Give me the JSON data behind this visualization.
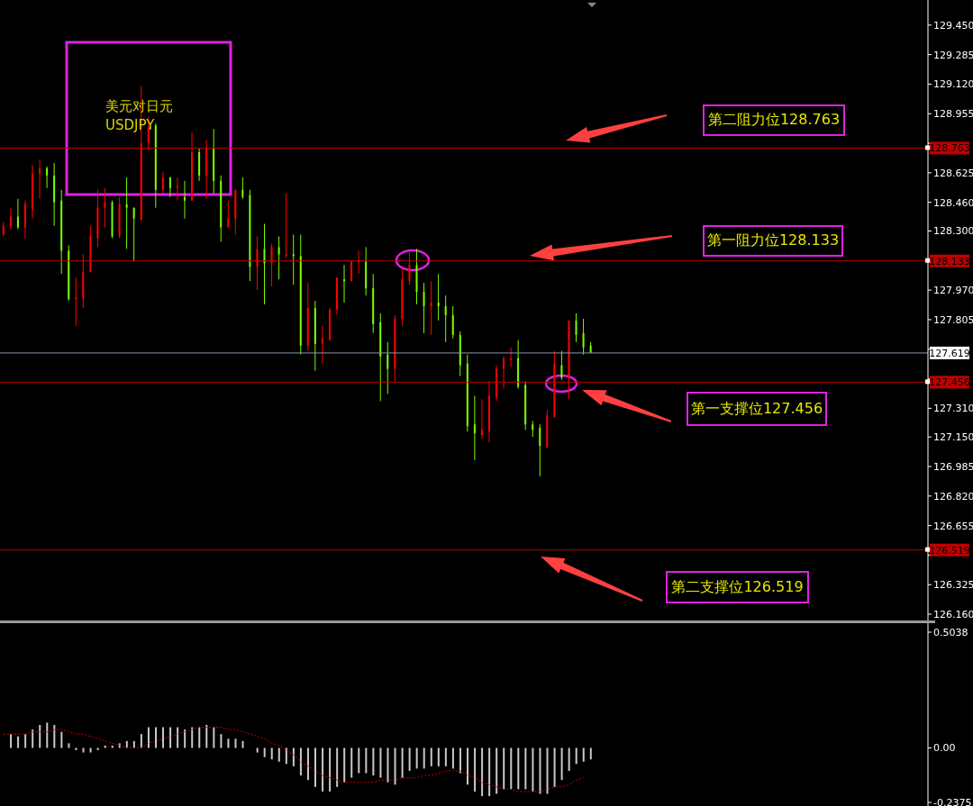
{
  "chart_data": [
    {
      "type": "candlestick",
      "title": "美元对日元",
      "subtitle": "USDJPY",
      "categories": [
        null,
        null,
        null,
        null,
        null,
        null,
        null,
        null,
        null,
        null,
        null,
        null,
        null,
        null,
        null,
        null,
        null,
        null,
        null,
        null,
        null,
        null,
        null,
        null,
        null,
        null,
        null,
        null,
        null,
        null,
        null,
        null,
        null,
        null,
        null,
        null,
        null,
        null,
        null,
        null,
        null,
        null,
        null,
        null,
        null,
        null,
        null,
        null,
        null,
        null,
        null,
        null,
        null,
        null,
        null,
        null,
        null,
        null,
        null,
        null,
        null,
        null,
        null,
        null,
        null,
        null,
        null,
        null,
        null,
        null,
        null,
        null,
        null,
        null,
        null,
        null,
        null,
        null,
        null,
        null,
        null,
        null,
        null,
        null,
        null,
        null,
        null,
        null,
        null,
        null,
        null,
        null,
        null,
        null,
        null,
        null,
        null,
        null,
        null,
        null,
        null,
        null,
        null,
        null,
        null,
        null,
        null,
        null,
        null,
        null,
        null,
        null,
        null,
        null,
        null,
        null,
        null,
        null,
        null,
        null,
        null,
        null,
        null,
        null,
        null,
        null,
        null,
        null
      ],
      "ohlc": [
        [
          128.28,
          128.35,
          128.27,
          128.33
        ],
        [
          128.33,
          128.43,
          128.31,
          128.38
        ],
        [
          128.38,
          128.48,
          128.31,
          128.32
        ],
        [
          128.32,
          128.47,
          128.26,
          128.45
        ],
        [
          128.42,
          128.67,
          128.37,
          128.62
        ],
        [
          128.62,
          128.7,
          128.48,
          128.65
        ],
        [
          128.65,
          128.66,
          128.54,
          128.61
        ],
        [
          128.61,
          128.68,
          128.33,
          128.46
        ],
        [
          128.47,
          128.53,
          128.06,
          128.19
        ],
        [
          128.19,
          128.22,
          127.91,
          127.92
        ],
        [
          127.92,
          128.04,
          127.77,
          127.93
        ],
        [
          127.92,
          128.17,
          127.87,
          128.07
        ],
        [
          128.07,
          128.33,
          128.07,
          128.27
        ],
        [
          128.26,
          128.53,
          128.21,
          128.43
        ],
        [
          128.43,
          128.54,
          128.32,
          128.46
        ],
        [
          128.46,
          128.47,
          128.26,
          128.27
        ],
        [
          128.27,
          128.49,
          128.26,
          128.45
        ],
        [
          128.45,
          128.6,
          128.2,
          128.43
        ],
        [
          128.43,
          128.43,
          128.13,
          128.37
        ],
        [
          128.36,
          129.11,
          128.36,
          128.79
        ],
        [
          128.79,
          128.94,
          128.75,
          128.88
        ],
        [
          128.89,
          128.9,
          128.43,
          128.53
        ],
        [
          128.53,
          128.63,
          128.51,
          128.6
        ],
        [
          128.6,
          128.6,
          128.49,
          128.54
        ],
        [
          128.54,
          128.6,
          128.47,
          128.55
        ],
        [
          128.49,
          128.58,
          128.37,
          128.47
        ],
        [
          128.47,
          128.85,
          128.47,
          128.74
        ],
        [
          128.74,
          128.76,
          128.58,
          128.61
        ],
        [
          128.61,
          128.81,
          128.48,
          128.76
        ],
        [
          128.76,
          128.87,
          128.51,
          128.58
        ],
        [
          128.58,
          128.61,
          128.24,
          128.32
        ],
        [
          128.32,
          128.47,
          128.32,
          128.37
        ],
        [
          128.37,
          128.53,
          128.28,
          128.53
        ],
        [
          128.53,
          128.6,
          128.48,
          128.49
        ],
        [
          128.5,
          128.53,
          128.02,
          128.1
        ],
        [
          128.1,
          128.27,
          127.97,
          128.2
        ],
        [
          128.2,
          128.34,
          127.89,
          128.12
        ],
        [
          128.12,
          128.23,
          127.99,
          128.21
        ],
        [
          128.21,
          128.27,
          128.03,
          128.17
        ],
        [
          128.16,
          128.51,
          128.15,
          128.17
        ],
        [
          128.17,
          128.28,
          128.0,
          128.16
        ],
        [
          128.16,
          128.28,
          127.61,
          127.66
        ],
        [
          127.66,
          128.01,
          127.63,
          127.87
        ],
        [
          127.87,
          127.91,
          127.52,
          127.67
        ],
        [
          127.67,
          127.77,
          127.56,
          127.7
        ],
        [
          127.69,
          127.87,
          127.69,
          127.86
        ],
        [
          127.86,
          128.04,
          127.83,
          128.04
        ],
        [
          128.03,
          128.11,
          127.9,
          128.02
        ],
        [
          128.02,
          128.13,
          128.02,
          128.13
        ],
        [
          128.13,
          128.19,
          128.06,
          128.13
        ],
        [
          128.13,
          128.21,
          127.94,
          127.98
        ],
        [
          127.98,
          128.06,
          127.73,
          127.78
        ],
        [
          127.79,
          127.84,
          127.35,
          127.6
        ],
        [
          127.61,
          127.68,
          127.39,
          127.53
        ],
        [
          127.53,
          127.83,
          127.46,
          127.81
        ],
        [
          127.81,
          128.09,
          127.77,
          128.03
        ],
        [
          128.02,
          128.18,
          128.0,
          128.11
        ],
        [
          128.11,
          128.2,
          127.89,
          127.96
        ],
        [
          127.96,
          128.01,
          127.73,
          127.88
        ],
        [
          127.88,
          128.02,
          127.72,
          127.9
        ],
        [
          127.9,
          128.06,
          127.8,
          127.88
        ],
        [
          127.88,
          127.94,
          127.68,
          127.83
        ],
        [
          127.83,
          127.88,
          127.7,
          127.72
        ],
        [
          127.72,
          127.74,
          127.49,
          127.55
        ],
        [
          127.56,
          127.61,
          127.18,
          127.21
        ],
        [
          127.22,
          127.38,
          127.02,
          127.17
        ],
        [
          127.16,
          127.36,
          127.14,
          127.19
        ],
        [
          127.18,
          127.46,
          127.12,
          127.38
        ],
        [
          127.37,
          127.55,
          127.35,
          127.53
        ],
        [
          127.53,
          127.6,
          127.42,
          127.59
        ],
        [
          127.58,
          127.65,
          127.54,
          127.59
        ],
        [
          127.59,
          127.69,
          127.42,
          127.43
        ],
        [
          127.44,
          127.46,
          127.19,
          127.22
        ],
        [
          127.22,
          127.24,
          127.15,
          127.19
        ],
        [
          127.2,
          127.22,
          126.93,
          127.1
        ],
        [
          127.09,
          127.3,
          127.09,
          127.27
        ],
        [
          127.26,
          127.63,
          127.26,
          127.56
        ],
        [
          127.55,
          127.63,
          127.47,
          127.48
        ],
        [
          127.48,
          127.8,
          127.36,
          127.8
        ],
        [
          127.8,
          127.84,
          127.68,
          127.72
        ],
        [
          127.73,
          127.81,
          127.61,
          127.65
        ],
        [
          127.66,
          127.68,
          127.62,
          127.62
        ],
        null,
        null,
        null,
        null,
        null,
        null,
        null,
        null,
        null,
        null,
        null,
        null,
        null,
        null,
        null,
        null,
        null,
        null,
        null,
        null,
        null,
        null,
        null,
        null,
        null,
        null,
        null,
        null,
        null,
        null,
        null,
        null,
        null,
        null,
        null,
        null,
        null,
        null,
        null,
        null,
        null,
        null,
        null,
        null,
        null,
        null
      ],
      "colors": [
        "#ff0000",
        "#ff0000",
        "#7cfc00",
        "#ff0000",
        "#ff0000",
        "#ff0000",
        "#7cfc00",
        "#7cfc00",
        "#7cfc00",
        "#7cfc00",
        "#ff0000",
        "#ff0000",
        "#ff0000",
        "#ff0000",
        "#ff0000",
        "#7cfc00",
        "#ff0000",
        "#7cfc00",
        "#7cfc00",
        "#ff0000",
        "#ff0000",
        "#7cfc00",
        "#ff0000",
        "#7cfc00",
        "#ff0000",
        "#7cfc00",
        "#ff0000",
        "#7cfc00",
        "#ff0000",
        "#7cfc00",
        "#7cfc00",
        "#ff0000",
        "#ff0000",
        "#7cfc00",
        "#7cfc00",
        "#ff0000",
        "#7cfc00",
        "#ff0000",
        "#7cfc00",
        "#ff0000",
        "#7cfc00",
        "#7cfc00",
        "#ff0000",
        "#7cfc00",
        "#ff0000",
        "#ff0000",
        "#ff0000",
        "#7cfc00",
        "#ff0000",
        "#ff0000",
        "#7cfc00",
        "#7cfc00",
        "#7cfc00",
        "#7cfc00",
        "#ff0000",
        "#ff0000",
        "#ff0000",
        "#7cfc00",
        "#7cfc00",
        "#ff0000",
        "#7cfc00",
        "#7cfc00",
        "#7cfc00",
        "#7cfc00",
        "#7cfc00",
        "#7cfc00",
        "#ff0000",
        "#ff0000",
        "#ff0000",
        "#ff0000",
        "#ff0000",
        "#7cfc00",
        "#7cfc00",
        "#7cfc00",
        "#7cfc00",
        "#ff0000",
        "#ff0000",
        "#7cfc00",
        "#ff0000",
        "#7cfc00",
        "#7cfc00",
        "#7cfc00",
        null,
        null,
        null,
        null,
        null,
        null,
        null,
        null,
        null,
        null,
        null,
        null,
        null,
        null,
        null,
        null,
        null,
        null,
        null,
        null,
        null,
        null,
        null,
        null,
        null,
        null,
        null,
        null,
        null,
        null,
        null,
        null,
        null,
        null,
        null,
        null,
        null,
        null,
        null,
        null,
        null,
        null,
        null,
        null,
        null,
        null
      ],
      "ylim": [
        126.12,
        129.59
      ],
      "annotations": [
        {
          "text": "128.763",
          "y": 128.763
        },
        {
          "text": "128.133",
          "y": 128.133
        },
        {
          "text": "127.619",
          "y": 127.619
        },
        {
          "text": "127.456",
          "y": 127.456
        },
        {
          "text": "126.519",
          "y": 126.519
        }
      ],
      "yticks": [
        {
          "value": 129.45,
          "label": "129.450"
        },
        {
          "value": 129.285,
          "label": "129.285"
        },
        {
          "value": 129.12,
          "label": "129.120"
        },
        {
          "value": 128.955,
          "label": "128.955"
        },
        {
          "value": 128.79,
          "label": null
        },
        {
          "value": 128.625,
          "label": "128.625"
        },
        {
          "value": 128.46,
          "label": "128.460"
        },
        {
          "value": 128.3,
          "label": "128.300"
        },
        {
          "value": 128.135,
          "label": null
        },
        {
          "value": 127.97,
          "label": "127.970"
        },
        {
          "value": 127.805,
          "label": "127.805"
        },
        {
          "value": 127.64,
          "label": null
        },
        {
          "value": 127.475,
          "label": null
        },
        {
          "value": 127.31,
          "label": "127.310"
        },
        {
          "value": 127.15,
          "label": "127.150"
        },
        {
          "value": 126.985,
          "label": "126.985"
        },
        {
          "value": 126.82,
          "label": "126.820"
        },
        {
          "value": 126.655,
          "label": "126.655"
        },
        {
          "value": 126.49,
          "label": null
        },
        {
          "value": 126.325,
          "label": "126.325"
        },
        {
          "value": 126.16,
          "label": "126.160"
        }
      ],
      "ref_lines": [
        {
          "axis": "y",
          "value": 128.763,
          "label": "第二阻力位128.763",
          "color": "#c00000"
        },
        {
          "axis": "y",
          "value": 128.133,
          "label": "第一阻力位128.133",
          "color": "#c00000"
        },
        {
          "axis": "y",
          "value": 127.456,
          "label": "第一支撑位127.456",
          "color": "#c00000"
        },
        {
          "axis": "y",
          "value": 126.519,
          "label": "第二支撑位126.519",
          "color": "#c00000"
        },
        {
          "axis": "y",
          "value": 127.619,
          "label": null,
          "color": "#8a9bb0"
        }
      ],
      "tick_labels": "y",
      "grid": false,
      "legend": false
    },
    {
      "type": "bar",
      "categories": [
        null,
        null,
        null,
        null,
        null,
        null,
        null,
        null,
        null,
        null,
        null,
        null,
        null,
        null,
        null,
        null,
        null,
        null,
        null,
        null,
        null,
        null,
        null,
        null,
        null,
        null,
        null,
        null,
        null,
        null,
        null,
        null,
        null,
        null,
        null,
        null,
        null,
        null,
        null,
        null,
        null,
        null,
        null,
        null,
        null,
        null,
        null,
        null,
        null,
        null,
        null,
        null,
        null,
        null,
        null,
        null,
        null,
        null,
        null,
        null,
        null,
        null,
        null,
        null,
        null,
        null,
        null,
        null,
        null,
        null,
        null,
        null,
        null,
        null,
        null,
        null,
        null,
        null,
        null,
        null,
        null,
        null,
        null,
        null,
        null,
        null,
        null,
        null,
        null,
        null,
        null,
        null,
        null,
        null,
        null,
        null,
        null,
        null,
        null,
        null,
        null,
        null,
        null,
        null,
        null,
        null,
        null,
        null,
        null,
        null,
        null,
        null,
        null,
        null,
        null,
        null,
        null,
        null,
        null,
        null,
        null,
        null,
        null,
        null,
        null,
        null,
        null,
        null
      ],
      "series": [
        {
          "type": "bar",
          "color": "#c8c8c8",
          "values": [
            null,
            0.06,
            0.05,
            0.06,
            0.08,
            0.1,
            0.11,
            0.1,
            0.07,
            0.02,
            -0.01,
            -0.02,
            -0.02,
            -0.01,
            0.01,
            0.01,
            0.02,
            0.03,
            0.03,
            0.06,
            0.09,
            0.09,
            0.09,
            0.09,
            0.09,
            0.08,
            0.09,
            0.09,
            0.1,
            0.09,
            0.06,
            0.04,
            0.04,
            0.03,
            0,
            -0.02,
            -0.04,
            -0.05,
            -0.06,
            -0.07,
            -0.08,
            -0.12,
            -0.14,
            -0.17,
            -0.19,
            -0.19,
            -0.17,
            -0.15,
            -0.13,
            -0.11,
            -0.11,
            -0.12,
            -0.13,
            -0.15,
            -0.16,
            -0.13,
            -0.1,
            -0.09,
            -0.09,
            -0.08,
            -0.08,
            -0.08,
            -0.09,
            -0.11,
            -0.16,
            -0.19,
            -0.21,
            -0.21,
            -0.2,
            -0.18,
            -0.18,
            -0.18,
            -0.18,
            -0.19,
            -0.2,
            -0.2,
            -0.17,
            -0.14,
            -0.1,
            -0.07,
            -0.06,
            -0.05,
            null,
            null,
            null,
            null,
            null,
            null,
            null,
            null,
            null,
            null,
            null,
            null,
            null,
            null,
            null,
            null,
            null,
            null,
            null,
            null,
            null,
            null,
            null,
            null,
            null,
            null,
            null,
            null,
            null,
            null,
            null,
            null,
            null,
            null,
            null,
            null,
            null,
            null,
            null,
            null,
            null,
            null,
            null,
            null,
            null,
            null
          ]
        },
        {
          "type": "line",
          "color": "#cc0000",
          "values": [
            0.06,
            0.06,
            0.06,
            0.06,
            0.07,
            0.07,
            0.07,
            0.08,
            0.08,
            0.07,
            0.06,
            0.06,
            0.05,
            0.04,
            0.03,
            0.02,
            0.01,
            0,
            0,
            0,
            0.02,
            0.03,
            0.04,
            0.05,
            0.06,
            0.07,
            0.08,
            0.09,
            0.09,
            0.09,
            0.09,
            0.08,
            0.08,
            0.07,
            0.06,
            0.05,
            0.04,
            0.02,
            0.01,
            -0.01,
            -0.03,
            -0.06,
            -0.08,
            -0.1,
            -0.12,
            -0.13,
            -0.14,
            -0.15,
            -0.15,
            -0.15,
            -0.15,
            -0.15,
            -0.14,
            -0.14,
            -0.14,
            -0.13,
            -0.13,
            -0.13,
            -0.12,
            -0.12,
            -0.11,
            -0.1,
            -0.1,
            -0.1,
            -0.12,
            -0.13,
            -0.15,
            -0.16,
            -0.17,
            -0.18,
            -0.18,
            -0.19,
            -0.19,
            -0.19,
            -0.19,
            -0.18,
            -0.17,
            -0.17,
            -0.16,
            -0.14,
            -0.13,
            null,
            null,
            null,
            null,
            null,
            null,
            null,
            null,
            null,
            null,
            null,
            null,
            null,
            null,
            null,
            null,
            null,
            null,
            null,
            null,
            null,
            null,
            null,
            null,
            null,
            null,
            null,
            null,
            null,
            null,
            null,
            null,
            null,
            null,
            null,
            null,
            null,
            null,
            null,
            null,
            null,
            null,
            null,
            null,
            null,
            null,
            null
          ]
        }
      ],
      "ylim": [
        -0.253,
        0.543
      ],
      "yticks": [
        0.5038,
        {
          "value": 0,
          "label": "0.00"
        },
        -0.2375
      ],
      "line_style": "dotted",
      "marker": "none",
      "tick_labels": "y",
      "grid": false,
      "legend": false
    }
  ]
}
